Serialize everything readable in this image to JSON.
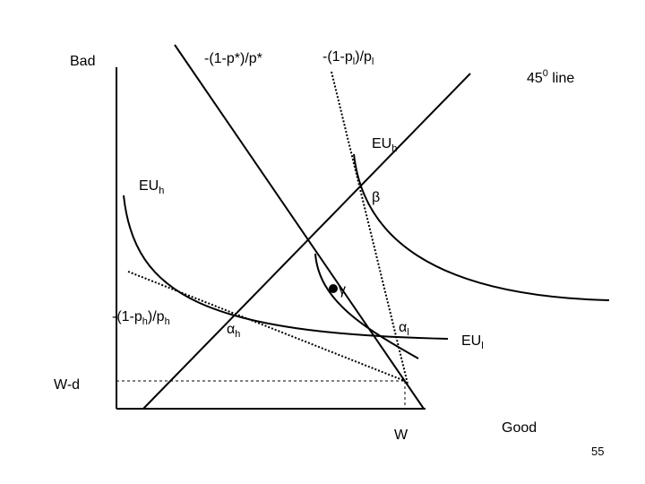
{
  "axes": {
    "y_label": "Bad",
    "x_label": "Good"
  },
  "lines": {
    "slope_star": "-(1-p*)/p*",
    "slope_l": [
      "-(1-p",
      "l",
      ")/p",
      "l"
    ],
    "slope_h": [
      "-(1-p",
      "h",
      ")/p",
      "h"
    ],
    "line_45": [
      "45",
      "0",
      " line"
    ]
  },
  "curves": {
    "eu_h_upper": [
      "EU",
      "h"
    ],
    "eu_h_lower": [
      "EU",
      "h"
    ],
    "eu_l": [
      "EU",
      "l"
    ]
  },
  "points": {
    "beta": "β",
    "gamma": "γ",
    "alpha_h": [
      "α",
      "h"
    ],
    "alpha_l": [
      "α",
      "l"
    ]
  },
  "levels": {
    "wd": "W-d",
    "w": "W"
  },
  "page_number": "55"
}
